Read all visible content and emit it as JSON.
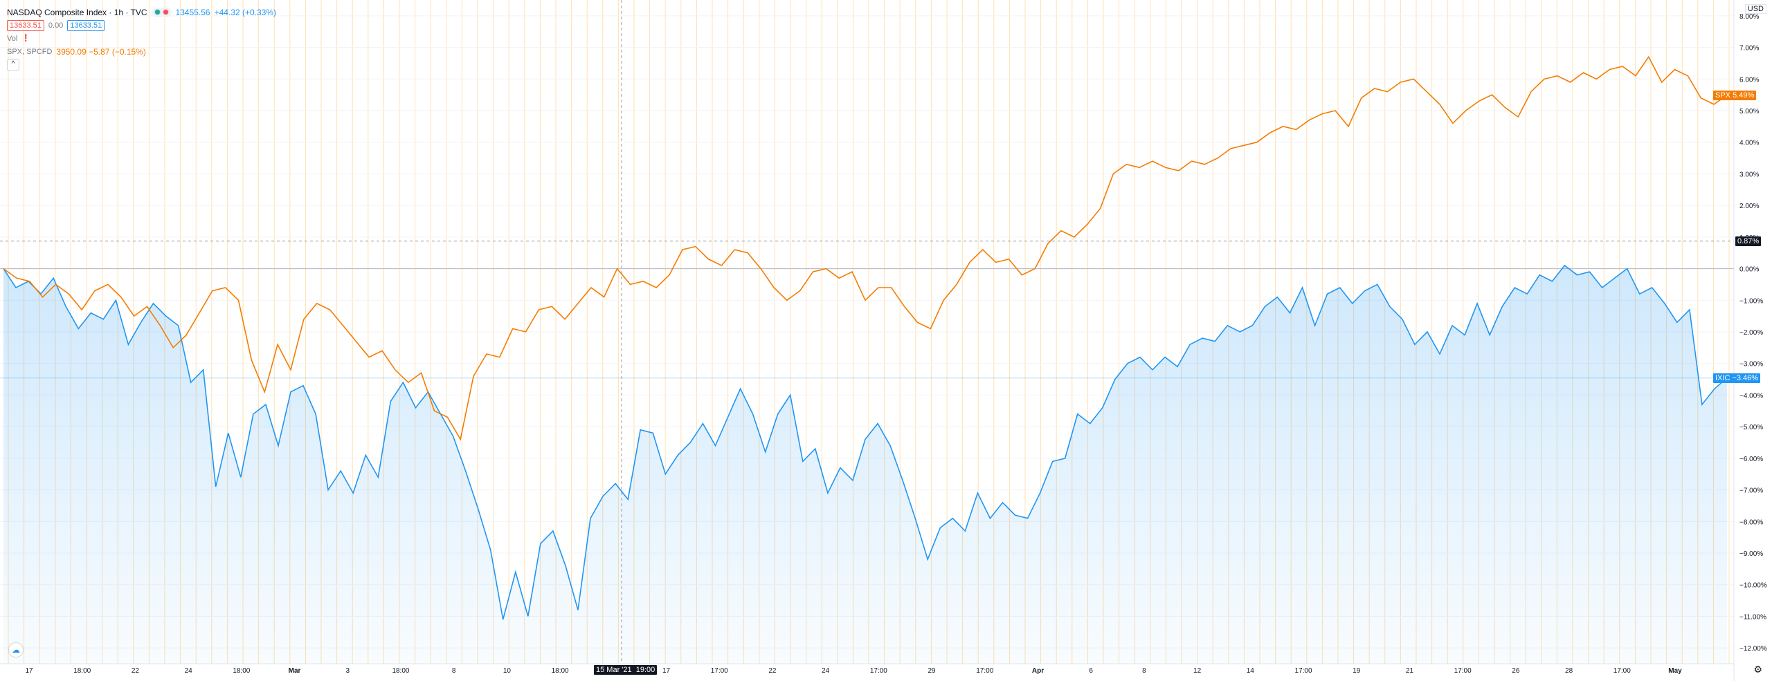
{
  "legend": {
    "title": "NASDAQ Composite Index · 1h · TVC",
    "price": "13455.56",
    "change": "+44.32 (+0.33%)",
    "bid": "13633.51",
    "spread": "0.00",
    "ask": "13633.51",
    "vol_label": "Vol",
    "compare_label": "SPX, SPCFD",
    "compare_value": "3950.09 −5.87 (−0.15%)",
    "collapse_glyph": "^"
  },
  "axis": {
    "currency": "USD",
    "current_tag": "0.87%",
    "spx_tag": "SPX 5.49%",
    "ixic_tag": "IXIC −3.46%",
    "crosshair_date": "15 Mar '21",
    "crosshair_time": "19:00"
  },
  "colors": {
    "ixic": "#2196f3",
    "spx": "#f57c00",
    "session": "#ffe0b2",
    "grid": "#f0f3fa"
  },
  "chart_data": {
    "type": "line",
    "ylabel": "%",
    "ylim": [
      -12.5,
      8.5
    ],
    "yticks": [
      "8.00%",
      "7.00%",
      "6.00%",
      "5.00%",
      "4.00%",
      "3.00%",
      "2.00%",
      "1.00%",
      "0.00%",
      "−1.00%",
      "−2.00%",
      "−3.00%",
      "−4.00%",
      "−5.00%",
      "−6.00%",
      "−7.00%",
      "−8.00%",
      "−9.00%",
      "−10.00%",
      "−11.00%",
      "−12.00%"
    ],
    "xticks": [
      "17",
      "18:00",
      "22",
      "24",
      "18:00",
      "Mar",
      "3",
      "18:00",
      "8",
      "10",
      "18:00",
      "15 Mar '21",
      "17",
      "17:00",
      "22",
      "24",
      "17:00",
      "29",
      "17:00",
      "Apr",
      "6",
      "8",
      "12",
      "14",
      "17:00",
      "19",
      "21",
      "17:00",
      "26",
      "28",
      "17:00",
      "May"
    ],
    "series": [
      {
        "name": "IXIC",
        "points": [
          [
            0,
            0.0
          ],
          [
            1,
            -0.6
          ],
          [
            2,
            -0.4
          ],
          [
            3,
            -0.8
          ],
          [
            4,
            -0.3
          ],
          [
            5,
            -1.2
          ],
          [
            6,
            -1.9
          ],
          [
            7,
            -1.4
          ],
          [
            8,
            -1.6
          ],
          [
            9,
            -1.0
          ],
          [
            10,
            -2.4
          ],
          [
            11,
            -1.7
          ],
          [
            12,
            -1.1
          ],
          [
            13,
            -1.5
          ],
          [
            14,
            -1.8
          ],
          [
            15,
            -3.6
          ],
          [
            16,
            -3.2
          ],
          [
            17,
            -6.9
          ],
          [
            18,
            -5.2
          ],
          [
            19,
            -6.6
          ],
          [
            20,
            -4.6
          ],
          [
            21,
            -4.3
          ],
          [
            22,
            -5.6
          ],
          [
            23,
            -3.9
          ],
          [
            24,
            -3.7
          ],
          [
            25,
            -4.6
          ],
          [
            26,
            -7.0
          ],
          [
            27,
            -6.4
          ],
          [
            28,
            -7.1
          ],
          [
            29,
            -5.9
          ],
          [
            30,
            -6.6
          ],
          [
            31,
            -4.2
          ],
          [
            32,
            -3.6
          ],
          [
            33,
            -4.4
          ],
          [
            34,
            -3.9
          ],
          [
            35,
            -4.6
          ],
          [
            36,
            -5.3
          ],
          [
            37,
            -6.4
          ],
          [
            38,
            -7.6
          ],
          [
            39,
            -8.9
          ],
          [
            40,
            -11.1
          ],
          [
            41,
            -9.6
          ],
          [
            42,
            -11.0
          ],
          [
            43,
            -8.7
          ],
          [
            44,
            -8.3
          ],
          [
            45,
            -9.4
          ],
          [
            46,
            -10.8
          ],
          [
            47,
            -7.9
          ],
          [
            48,
            -7.2
          ],
          [
            49,
            -6.8
          ],
          [
            50,
            -7.3
          ],
          [
            51,
            -5.1
          ],
          [
            52,
            -5.2
          ],
          [
            53,
            -6.5
          ],
          [
            54,
            -5.9
          ],
          [
            55,
            -5.5
          ],
          [
            56,
            -4.9
          ],
          [
            57,
            -5.6
          ],
          [
            58,
            -4.7
          ],
          [
            59,
            -3.8
          ],
          [
            60,
            -4.6
          ],
          [
            61,
            -5.8
          ],
          [
            62,
            -4.6
          ],
          [
            63,
            -4.0
          ],
          [
            64,
            -6.1
          ],
          [
            65,
            -5.7
          ],
          [
            66,
            -7.1
          ],
          [
            67,
            -6.3
          ],
          [
            68,
            -6.7
          ],
          [
            69,
            -5.4
          ],
          [
            70,
            -4.9
          ],
          [
            71,
            -5.6
          ],
          [
            72,
            -6.7
          ],
          [
            73,
            -7.9
          ],
          [
            74,
            -9.2
          ],
          [
            75,
            -8.2
          ],
          [
            76,
            -7.9
          ],
          [
            77,
            -8.3
          ],
          [
            78,
            -7.1
          ],
          [
            79,
            -7.9
          ],
          [
            80,
            -7.4
          ],
          [
            81,
            -7.8
          ],
          [
            82,
            -7.9
          ],
          [
            83,
            -7.1
          ],
          [
            84,
            -6.1
          ],
          [
            85,
            -6.0
          ],
          [
            86,
            -4.6
          ],
          [
            87,
            -4.9
          ],
          [
            88,
            -4.4
          ],
          [
            89,
            -3.5
          ],
          [
            90,
            -3.0
          ],
          [
            91,
            -2.8
          ],
          [
            92,
            -3.2
          ],
          [
            93,
            -2.8
          ],
          [
            94,
            -3.1
          ],
          [
            95,
            -2.4
          ],
          [
            96,
            -2.2
          ],
          [
            97,
            -2.3
          ],
          [
            98,
            -1.8
          ],
          [
            99,
            -2.0
          ],
          [
            100,
            -1.8
          ],
          [
            101,
            -1.2
          ],
          [
            102,
            -0.9
          ],
          [
            103,
            -1.4
          ],
          [
            104,
            -0.6
          ],
          [
            105,
            -1.8
          ],
          [
            106,
            -0.8
          ],
          [
            107,
            -0.6
          ],
          [
            108,
            -1.1
          ],
          [
            109,
            -0.7
          ],
          [
            110,
            -0.5
          ],
          [
            111,
            -1.2
          ],
          [
            112,
            -1.6
          ],
          [
            113,
            -2.4
          ],
          [
            114,
            -2.0
          ],
          [
            115,
            -2.7
          ],
          [
            116,
            -1.8
          ],
          [
            117,
            -2.1
          ],
          [
            118,
            -1.1
          ],
          [
            119,
            -2.1
          ],
          [
            120,
            -1.2
          ],
          [
            121,
            -0.6
          ],
          [
            122,
            -0.8
          ],
          [
            123,
            -0.2
          ],
          [
            124,
            -0.4
          ],
          [
            125,
            0.1
          ],
          [
            126,
            -0.2
          ],
          [
            127,
            -0.1
          ],
          [
            128,
            -0.6
          ],
          [
            129,
            -0.3
          ],
          [
            130,
            0.0
          ],
          [
            131,
            -0.8
          ],
          [
            132,
            -0.6
          ],
          [
            133,
            -1.1
          ],
          [
            134,
            -1.7
          ],
          [
            135,
            -1.3
          ],
          [
            136,
            -4.3
          ],
          [
            137,
            -3.8
          ],
          [
            138,
            -3.46
          ]
        ]
      },
      {
        "name": "SPX",
        "points": [
          [
            0,
            0.0
          ],
          [
            1,
            -0.3
          ],
          [
            2,
            -0.4
          ],
          [
            3,
            -0.9
          ],
          [
            4,
            -0.5
          ],
          [
            5,
            -0.8
          ],
          [
            6,
            -1.3
          ],
          [
            7,
            -0.7
          ],
          [
            8,
            -0.5
          ],
          [
            9,
            -0.9
          ],
          [
            10,
            -1.5
          ],
          [
            11,
            -1.2
          ],
          [
            12,
            -1.8
          ],
          [
            13,
            -2.5
          ],
          [
            14,
            -2.1
          ],
          [
            15,
            -1.4
          ],
          [
            16,
            -0.7
          ],
          [
            17,
            -0.6
          ],
          [
            18,
            -1.0
          ],
          [
            19,
            -2.9
          ],
          [
            20,
            -3.9
          ],
          [
            21,
            -2.4
          ],
          [
            22,
            -3.2
          ],
          [
            23,
            -1.6
          ],
          [
            24,
            -1.1
          ],
          [
            25,
            -1.3
          ],
          [
            26,
            -1.8
          ],
          [
            27,
            -2.3
          ],
          [
            28,
            -2.8
          ],
          [
            29,
            -2.6
          ],
          [
            30,
            -3.2
          ],
          [
            31,
            -3.6
          ],
          [
            32,
            -3.3
          ],
          [
            33,
            -4.5
          ],
          [
            34,
            -4.7
          ],
          [
            35,
            -5.4
          ],
          [
            36,
            -3.4
          ],
          [
            37,
            -2.7
          ],
          [
            38,
            -2.8
          ],
          [
            39,
            -1.9
          ],
          [
            40,
            -2.0
          ],
          [
            41,
            -1.3
          ],
          [
            42,
            -1.2
          ],
          [
            43,
            -1.6
          ],
          [
            44,
            -1.1
          ],
          [
            45,
            -0.6
          ],
          [
            46,
            -0.9
          ],
          [
            47,
            0.0
          ],
          [
            48,
            -0.5
          ],
          [
            49,
            -0.4
          ],
          [
            50,
            -0.6
          ],
          [
            51,
            -0.2
          ],
          [
            52,
            0.6
          ],
          [
            53,
            0.7
          ],
          [
            54,
            0.3
          ],
          [
            55,
            0.1
          ],
          [
            56,
            0.6
          ],
          [
            57,
            0.5
          ],
          [
            58,
            0.0
          ],
          [
            59,
            -0.6
          ],
          [
            60,
            -1.0
          ],
          [
            61,
            -0.7
          ],
          [
            62,
            -0.1
          ],
          [
            63,
            0.0
          ],
          [
            64,
            -0.3
          ],
          [
            65,
            -0.1
          ],
          [
            66,
            -1.0
          ],
          [
            67,
            -0.6
          ],
          [
            68,
            -0.6
          ],
          [
            69,
            -1.2
          ],
          [
            70,
            -1.7
          ],
          [
            71,
            -1.9
          ],
          [
            72,
            -1.0
          ],
          [
            73,
            -0.5
          ],
          [
            74,
            0.2
          ],
          [
            75,
            0.6
          ],
          [
            76,
            0.2
          ],
          [
            77,
            0.3
          ],
          [
            78,
            -0.2
          ],
          [
            79,
            0.0
          ],
          [
            80,
            0.8
          ],
          [
            81,
            1.2
          ],
          [
            82,
            1.0
          ],
          [
            83,
            1.4
          ],
          [
            84,
            1.9
          ],
          [
            85,
            3.0
          ],
          [
            86,
            3.3
          ],
          [
            87,
            3.2
          ],
          [
            88,
            3.4
          ],
          [
            89,
            3.2
          ],
          [
            90,
            3.1
          ],
          [
            91,
            3.4
          ],
          [
            92,
            3.3
          ],
          [
            93,
            3.5
          ],
          [
            94,
            3.8
          ],
          [
            95,
            3.9
          ],
          [
            96,
            4.0
          ],
          [
            97,
            4.3
          ],
          [
            98,
            4.5
          ],
          [
            99,
            4.4
          ],
          [
            100,
            4.7
          ],
          [
            101,
            4.9
          ],
          [
            102,
            5.0
          ],
          [
            103,
            4.5
          ],
          [
            104,
            5.4
          ],
          [
            105,
            5.7
          ],
          [
            106,
            5.6
          ],
          [
            107,
            5.9
          ],
          [
            108,
            6.0
          ],
          [
            109,
            5.6
          ],
          [
            110,
            5.2
          ],
          [
            111,
            4.6
          ],
          [
            112,
            5.0
          ],
          [
            113,
            5.3
          ],
          [
            114,
            5.5
          ],
          [
            115,
            5.1
          ],
          [
            116,
            4.8
          ],
          [
            117,
            5.6
          ],
          [
            118,
            6.0
          ],
          [
            119,
            6.1
          ],
          [
            120,
            5.9
          ],
          [
            121,
            6.2
          ],
          [
            122,
            6.0
          ],
          [
            123,
            6.3
          ],
          [
            124,
            6.4
          ],
          [
            125,
            6.1
          ],
          [
            126,
            6.7
          ],
          [
            127,
            5.9
          ],
          [
            128,
            6.3
          ],
          [
            129,
            6.1
          ],
          [
            130,
            5.4
          ],
          [
            131,
            5.2
          ],
          [
            132,
            5.49
          ]
        ]
      }
    ],
    "current_value": 0.87,
    "grid": true,
    "legend_position": "top-left"
  }
}
